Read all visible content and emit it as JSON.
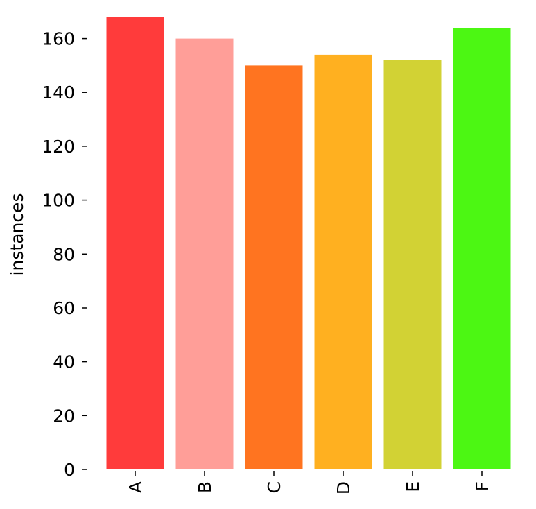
{
  "chart_data": {
    "type": "bar",
    "title": "",
    "xlabel": "",
    "ylabel": "instances",
    "categories": [
      "A",
      "B",
      "C",
      "D",
      "E",
      "F"
    ],
    "values": [
      168,
      160,
      150,
      154,
      152,
      164
    ],
    "colors": [
      "#ff3b3b",
      "#ff9e98",
      "#ff7420",
      "#ffb020",
      "#d2d234",
      "#4cf713"
    ],
    "ylim": [
      0,
      170
    ],
    "yticks": [
      0,
      20,
      40,
      60,
      80,
      100,
      120,
      140,
      160
    ],
    "ytick_labels": [
      "0",
      "20",
      "40",
      "60",
      "80",
      "100",
      "120",
      "140",
      "160"
    ],
    "grid": false,
    "legend": "none"
  }
}
